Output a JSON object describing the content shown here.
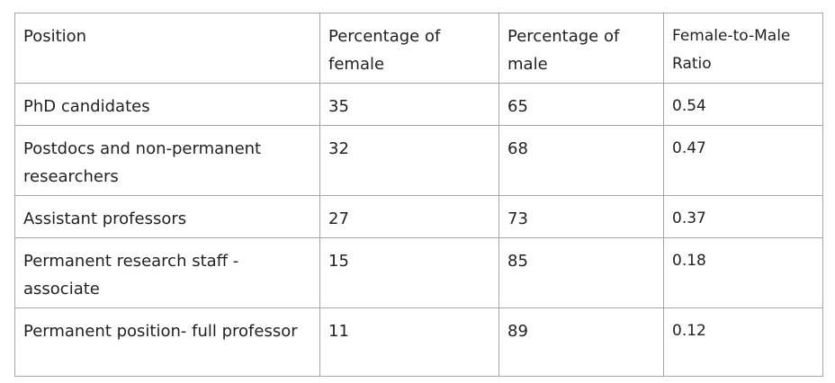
{
  "table": {
    "headers": [
      "Position",
      "Percentage of female",
      "Percentage of male",
      "Female-to-Male Ratio"
    ],
    "rows": [
      {
        "position": "PhD candidates",
        "female": "35",
        "male": "65",
        "ratio": "0.54"
      },
      {
        "position": "Postdocs and non-permanent researchers",
        "female": "32",
        "male": "68",
        "ratio": "0.47"
      },
      {
        "position": "Assistant professors",
        "female": "27",
        "male": "73",
        "ratio": "0.37"
      },
      {
        "position": "Permanent research staff - associate",
        "female": "15",
        "male": "85",
        "ratio": "0.18"
      },
      {
        "position": "Permanent position- full professor",
        "female": "11",
        "male": "89",
        "ratio": "0.12"
      }
    ]
  }
}
